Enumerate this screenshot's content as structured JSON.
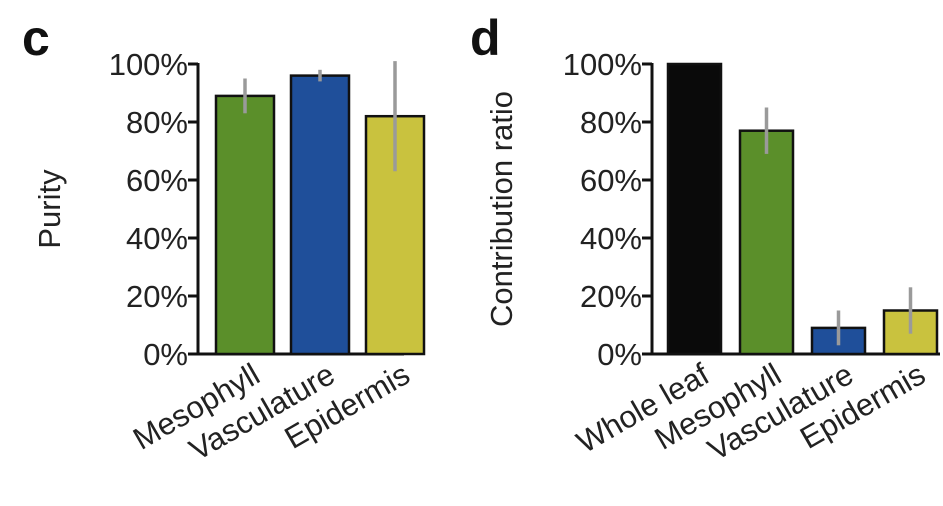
{
  "chart_data": [
    {
      "panel": "c",
      "type": "bar",
      "ylabel": "Purity",
      "ylim": [
        0,
        100
      ],
      "yticks": [
        "0%",
        "20%",
        "40%",
        "60%",
        "80%",
        "100%"
      ],
      "categories": [
        "Mesophyll",
        "Vasculature",
        "Epidermis"
      ],
      "values": [
        89,
        96,
        82
      ],
      "errors": [
        6,
        2,
        19
      ],
      "colors": [
        "#5b8f2a",
        "#1f4f9a",
        "#c9c23e"
      ],
      "grid": false,
      "legend": "none"
    },
    {
      "panel": "d",
      "type": "bar",
      "ylabel": "Contribution ratio",
      "ylim": [
        0,
        100
      ],
      "yticks": [
        "0%",
        "20%",
        "40%",
        "60%",
        "80%",
        "100%"
      ],
      "categories": [
        "Whole leaf",
        "Mesophyll",
        "Vasculature",
        "Epidermis"
      ],
      "values": [
        100,
        77,
        9,
        15
      ],
      "errors": [
        0,
        8,
        6,
        8
      ],
      "colors": [
        "#0a0a0a",
        "#5b8f2a",
        "#1f4f9a",
        "#c9c23e"
      ],
      "grid": false,
      "legend": "none"
    }
  ]
}
